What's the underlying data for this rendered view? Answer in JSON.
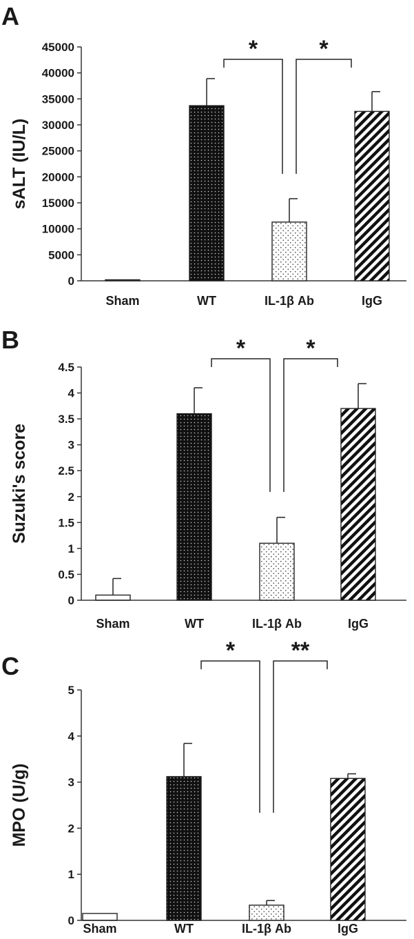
{
  "chart_data": [
    {
      "type": "bar",
      "panel_label": "A",
      "ylabel": "sALT (IU/L)",
      "xlabel": "",
      "categories": [
        "Sham",
        "WT",
        "IL-1β Ab",
        "IgG"
      ],
      "values": [
        0,
        33700,
        11300,
        32600
      ],
      "error": [
        0,
        5200,
        4500,
        3800
      ],
      "ylim": [
        0,
        45000
      ],
      "yticks": [
        "0",
        "5000",
        "10000",
        "15000",
        "20000",
        "25000",
        "30000",
        "35000",
        "40000",
        "45000"
      ],
      "bar_patterns": [
        "open",
        "dense-dots",
        "sparse-dots",
        "diagonal-stripes"
      ],
      "significance": [
        {
          "from": "WT",
          "to": "IL-1β Ab",
          "label": "*"
        },
        {
          "from": "IL-1β Ab",
          "to": "IgG",
          "label": "*"
        }
      ],
      "grid": false,
      "legend": "none"
    },
    {
      "type": "bar",
      "panel_label": "B",
      "ylabel": "Suzuki's score",
      "xlabel": "",
      "categories": [
        "Sham",
        "WT",
        "IL-1β Ab",
        "IgG"
      ],
      "values": [
        0.1,
        3.6,
        1.1,
        3.7
      ],
      "error": [
        0.32,
        0.5,
        0.5,
        0.48
      ],
      "ylim": [
        0,
        4.5
      ],
      "yticks": [
        "0",
        "0.5",
        "1",
        "1.5",
        "2",
        "2.5",
        "3",
        "3.5",
        "4",
        "4.5"
      ],
      "bar_patterns": [
        "open",
        "dense-dots",
        "sparse-dots",
        "diagonal-stripes"
      ],
      "significance": [
        {
          "from": "WT",
          "to": "IL-1β Ab",
          "label": "*"
        },
        {
          "from": "IL-1β Ab",
          "to": "IgG",
          "label": "*"
        }
      ],
      "grid": false,
      "legend": "none"
    },
    {
      "type": "bar",
      "panel_label": "C",
      "ylabel": "MPO (U/g)",
      "xlabel": "",
      "categories": [
        "Sham",
        "WT",
        "IL-1β Ab",
        "IgG"
      ],
      "values": [
        0.15,
        3.12,
        0.33,
        3.08
      ],
      "error": [
        0,
        0.72,
        0.1,
        0.1
      ],
      "ylim": [
        0,
        5
      ],
      "yticks": [
        "0",
        "1",
        "2",
        "3",
        "4",
        "5"
      ],
      "bar_patterns": [
        "open",
        "dense-dots",
        "sparse-dots",
        "diagonal-stripes"
      ],
      "significance": [
        {
          "from": "WT",
          "to": "IL-1β Ab",
          "label": "*"
        },
        {
          "from": "IL-1β Ab",
          "to": "IgG",
          "label": "**"
        }
      ],
      "grid": false,
      "legend": "none"
    }
  ]
}
